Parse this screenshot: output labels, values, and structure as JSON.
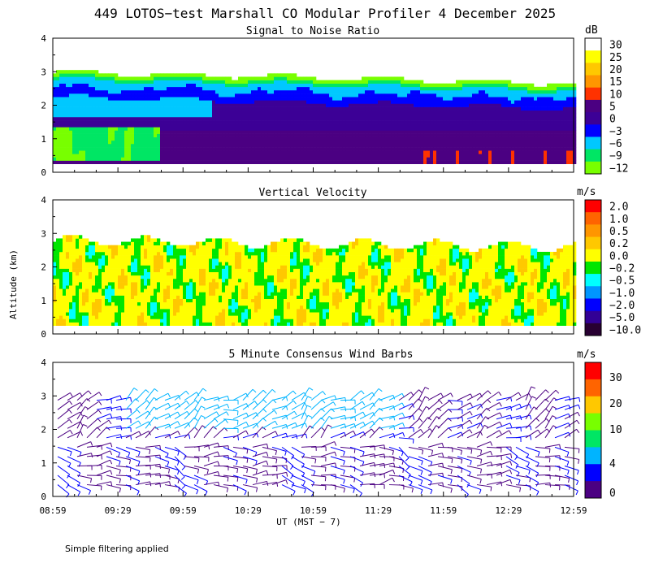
{
  "title": "449 LOTOS−test Marshall CO Modular Profiler  4 December 2025",
  "footnote": "Simple filtering applied",
  "shared_axes": {
    "ylabel": "Altitude (km)",
    "xlabel": "UT  (MST − 7)",
    "x_ticks": [
      "08:59",
      "09:29",
      "09:59",
      "10:29",
      "10:59",
      "11:29",
      "11:59",
      "12:29",
      "12:59"
    ],
    "y_ticks": [
      "0",
      "1",
      "2",
      "3",
      "4"
    ],
    "ylim": [
      0,
      4
    ]
  },
  "chart_data": [
    {
      "type": "heatmap",
      "title": "Signal to Noise Ratio",
      "colorbar_unit": "dB",
      "colorbar_labels": [
        "30",
        "25",
        "20",
        "15",
        "10",
        "5",
        "0",
        "−3",
        "−6",
        "−9",
        "−12"
      ],
      "colorbar_colors": [
        "#ffffff",
        "#ffff00",
        "#ffc800",
        "#ff9600",
        "#ff3200",
        "#4b0082",
        "#3c0096",
        "#0000ff",
        "#00c8ff",
        "#00e664",
        "#78ff00"
      ],
      "ylim": [
        0,
        4
      ]
    },
    {
      "type": "heatmap",
      "title": "Vertical Velocity",
      "colorbar_unit": "m/s",
      "colorbar_labels": [
        "2.0",
        "1.0",
        "0.5",
        "0.2",
        "0.0",
        "−0.2",
        "−0.5",
        "−1.0",
        "−2.0",
        "−5.0",
        "−10.0"
      ],
      "colorbar_colors": [
        "#ff0000",
        "#ff6400",
        "#ff9600",
        "#ffc800",
        "#ffff00",
        "#00e600",
        "#00ffff",
        "#0096ff",
        "#0000ff",
        "#320096",
        "#280032"
      ],
      "ylim": [
        0,
        4
      ]
    },
    {
      "type": "scatter",
      "title": "5 Minute Consensus Wind Barbs",
      "colorbar_unit": "m/s",
      "colorbar_labels": [
        "30",
        "20",
        "10",
        "4",
        "0"
      ],
      "colorbar_colors": [
        "#ff0000",
        "#ff6400",
        "#ffc800",
        "#78ff00",
        "#00e664",
        "#00b4ff",
        "#0000ff",
        "#4b0082"
      ],
      "ylim": [
        0,
        4
      ]
    }
  ]
}
